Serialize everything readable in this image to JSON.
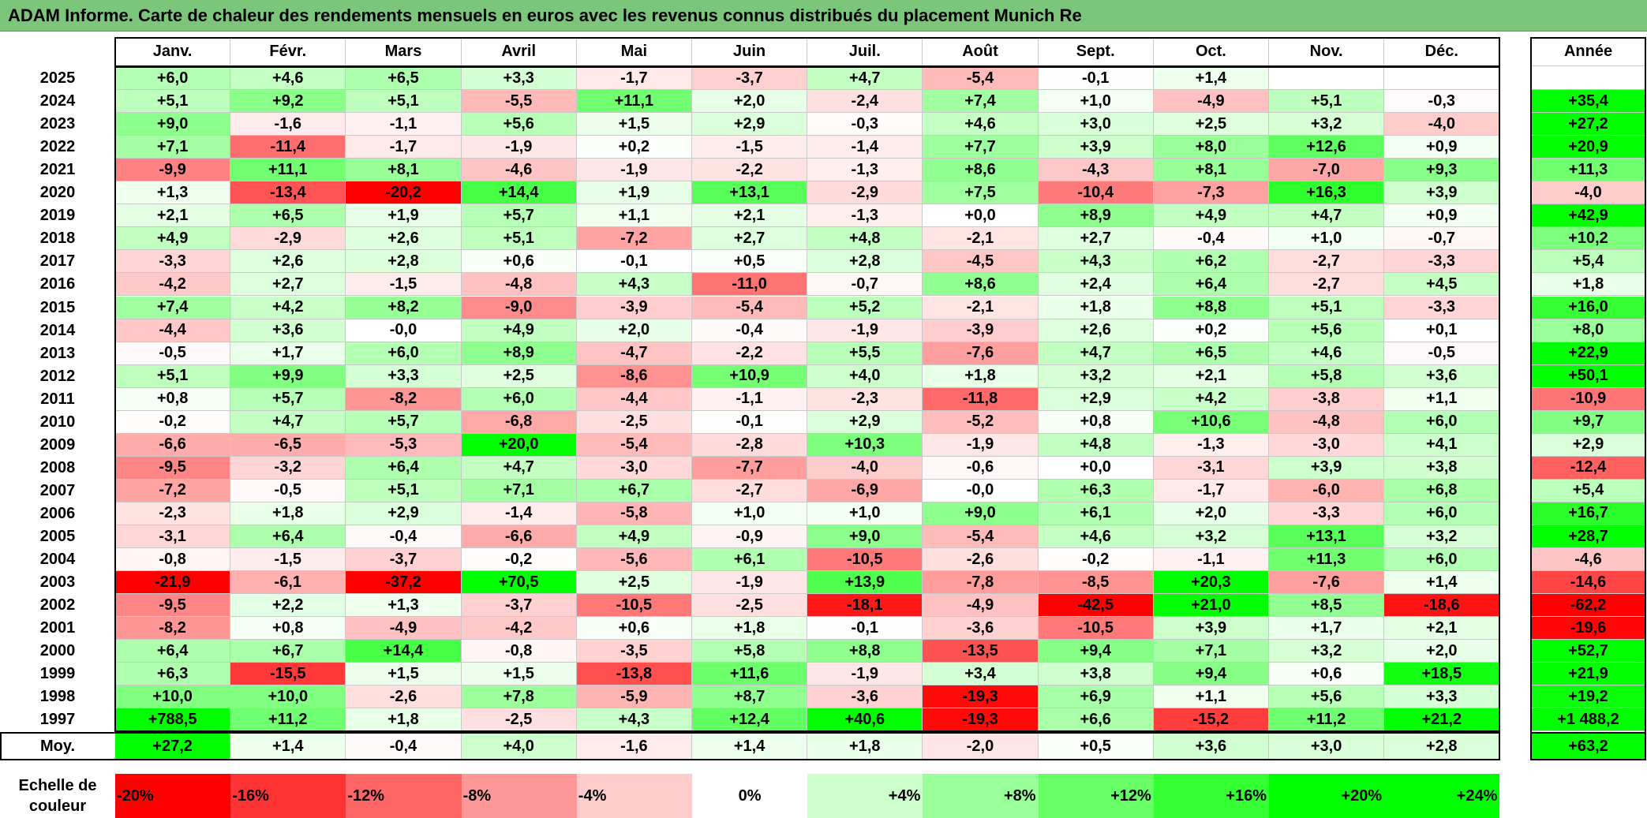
{
  "title": "ADAM Informe. Carte de chaleur des rendements mensuels en euros avec les revenus connus distribués du placement Munich Re",
  "chart_data": {
    "type": "heatmap",
    "columns": [
      "Janv.",
      "Févr.",
      "Mars",
      "Avril",
      "Mai",
      "Juin",
      "Juil.",
      "Août",
      "Sept.",
      "Oct.",
      "Nov.",
      "Déc."
    ],
    "year_column": "Année",
    "rows": [
      {
        "year": "2025",
        "values": [
          "+6,0",
          "+4,6",
          "+6,5",
          "+3,3",
          "-1,7",
          "-3,7",
          "+4,7",
          "-5,4",
          "-0,1",
          "+1,4",
          "",
          ""
        ],
        "annual": ""
      },
      {
        "year": "2024",
        "values": [
          "+5,1",
          "+9,2",
          "+5,1",
          "-5,5",
          "+11,1",
          "+2,0",
          "-2,4",
          "+7,4",
          "+1,0",
          "-4,9",
          "+5,1",
          "-0,3"
        ],
        "annual": "+35,4"
      },
      {
        "year": "2023",
        "values": [
          "+9,0",
          "-1,6",
          "-1,1",
          "+5,6",
          "+1,5",
          "+2,9",
          "-0,3",
          "+4,6",
          "+3,0",
          "+2,5",
          "+3,2",
          "-4,0"
        ],
        "annual": "+27,2"
      },
      {
        "year": "2022",
        "values": [
          "+7,1",
          "-11,4",
          "-1,7",
          "-1,9",
          "+0,2",
          "-1,5",
          "-1,4",
          "+7,7",
          "+3,9",
          "+8,0",
          "+12,6",
          "+0,9"
        ],
        "annual": "+20,9"
      },
      {
        "year": "2021",
        "values": [
          "-9,9",
          "+11,1",
          "+8,1",
          "-4,6",
          "-1,9",
          "-2,2",
          "-1,3",
          "+8,6",
          "-4,3",
          "+8,1",
          "-7,0",
          "+9,3"
        ],
        "annual": "+11,3"
      },
      {
        "year": "2020",
        "values": [
          "+1,3",
          "-13,4",
          "-20,2",
          "+14,4",
          "+1,9",
          "+13,1",
          "-2,9",
          "+7,5",
          "-10,4",
          "-7,3",
          "+16,3",
          "+3,9"
        ],
        "annual": "-4,0"
      },
      {
        "year": "2019",
        "values": [
          "+2,1",
          "+6,5",
          "+1,9",
          "+5,7",
          "+1,1",
          "+2,1",
          "-1,3",
          "+0,0",
          "+8,9",
          "+4,9",
          "+4,7",
          "+0,9"
        ],
        "annual": "+42,9"
      },
      {
        "year": "2018",
        "values": [
          "+4,9",
          "-2,9",
          "+2,6",
          "+5,1",
          "-7,2",
          "+2,7",
          "+4,8",
          "-2,1",
          "+2,7",
          "-0,4",
          "+1,0",
          "-0,7"
        ],
        "annual": "+10,2"
      },
      {
        "year": "2017",
        "values": [
          "-3,3",
          "+2,6",
          "+2,8",
          "+0,6",
          "-0,1",
          "+0,5",
          "+2,8",
          "-4,5",
          "+4,3",
          "+6,2",
          "-2,7",
          "-3,3"
        ],
        "annual": "+5,4"
      },
      {
        "year": "2016",
        "values": [
          "-4,2",
          "+2,7",
          "-1,5",
          "-4,8",
          "+4,3",
          "-11,0",
          "-0,7",
          "+8,6",
          "+2,4",
          "+6,4",
          "-2,7",
          "+4,5"
        ],
        "annual": "+1,8"
      },
      {
        "year": "2015",
        "values": [
          "+7,4",
          "+4,2",
          "+8,2",
          "-9,0",
          "-3,9",
          "-5,4",
          "+5,2",
          "-2,1",
          "+1,8",
          "+8,8",
          "+5,1",
          "-3,3"
        ],
        "annual": "+16,0"
      },
      {
        "year": "2014",
        "values": [
          "-4,4",
          "+3,6",
          "-0,0",
          "+4,9",
          "+2,0",
          "-0,4",
          "-1,9",
          "-3,9",
          "+2,6",
          "+0,2",
          "+5,6",
          "+0,1"
        ],
        "annual": "+8,0"
      },
      {
        "year": "2013",
        "values": [
          "-0,5",
          "+1,7",
          "+6,0",
          "+8,9",
          "-4,7",
          "-2,2",
          "+5,5",
          "-7,6",
          "+4,7",
          "+6,5",
          "+4,6",
          "-0,5"
        ],
        "annual": "+22,9"
      },
      {
        "year": "2012",
        "values": [
          "+5,1",
          "+9,9",
          "+3,3",
          "+2,5",
          "-8,6",
          "+10,9",
          "+4,0",
          "+1,8",
          "+3,2",
          "+2,1",
          "+5,8",
          "+3,6"
        ],
        "annual": "+50,1"
      },
      {
        "year": "2011",
        "values": [
          "+0,8",
          "+5,7",
          "-8,2",
          "+6,0",
          "-4,4",
          "-1,1",
          "-2,3",
          "-11,8",
          "+2,9",
          "+4,2",
          "-3,8",
          "+1,1"
        ],
        "annual": "-10,9"
      },
      {
        "year": "2010",
        "values": [
          "-0,2",
          "+4,7",
          "+5,7",
          "-6,8",
          "-2,5",
          "-0,1",
          "+2,9",
          "-5,2",
          "+0,8",
          "+10,6",
          "-4,8",
          "+6,0"
        ],
        "annual": "+9,7"
      },
      {
        "year": "2009",
        "values": [
          "-6,6",
          "-6,5",
          "-5,3",
          "+20,0",
          "-5,4",
          "-2,8",
          "+10,3",
          "-1,9",
          "+4,8",
          "-1,3",
          "-3,0",
          "+4,1"
        ],
        "annual": "+2,9"
      },
      {
        "year": "2008",
        "values": [
          "-9,5",
          "-3,2",
          "+6,4",
          "+4,7",
          "-3,0",
          "-7,7",
          "-4,0",
          "-0,6",
          "+0,0",
          "-3,1",
          "+3,9",
          "+3,8"
        ],
        "annual": "-12,4"
      },
      {
        "year": "2007",
        "values": [
          "-7,2",
          "-0,5",
          "+5,1",
          "+7,1",
          "+6,7",
          "-2,7",
          "-6,9",
          "-0,0",
          "+6,3",
          "-1,7",
          "-6,0",
          "+6,8"
        ],
        "annual": "+5,4"
      },
      {
        "year": "2006",
        "values": [
          "-2,3",
          "+1,8",
          "+2,9",
          "-1,4",
          "-5,8",
          "+1,0",
          "+1,0",
          "+9,0",
          "+6,1",
          "+2,0",
          "-3,3",
          "+6,0"
        ],
        "annual": "+16,7"
      },
      {
        "year": "2005",
        "values": [
          "-3,1",
          "+6,4",
          "-0,4",
          "-6,6",
          "+4,9",
          "-0,9",
          "+9,0",
          "-5,4",
          "+4,6",
          "+3,2",
          "+13,1",
          "+3,2"
        ],
        "annual": "+28,7"
      },
      {
        "year": "2004",
        "values": [
          "-0,8",
          "-1,5",
          "-3,7",
          "-0,2",
          "-5,6",
          "+6,1",
          "-10,5",
          "-2,6",
          "-0,2",
          "-1,1",
          "+11,3",
          "+6,0"
        ],
        "annual": "-4,6"
      },
      {
        "year": "2003",
        "values": [
          "-21,9",
          "-6,1",
          "-37,2",
          "+70,5",
          "+2,5",
          "-1,9",
          "+13,9",
          "-7,8",
          "-8,5",
          "+20,3",
          "-7,6",
          "+1,4"
        ],
        "annual": "-14,6"
      },
      {
        "year": "2002",
        "values": [
          "-9,5",
          "+2,2",
          "+1,3",
          "-3,7",
          "-10,5",
          "-2,5",
          "-18,1",
          "-4,9",
          "-42,5",
          "+21,0",
          "+8,5",
          "-18,6"
        ],
        "annual": "-62,2"
      },
      {
        "year": "2001",
        "values": [
          "-8,2",
          "+0,8",
          "-4,9",
          "-4,2",
          "+0,6",
          "+1,8",
          "-0,1",
          "-3,6",
          "-10,5",
          "+3,9",
          "+1,7",
          "+2,1"
        ],
        "annual": "-19,6"
      },
      {
        "year": "2000",
        "values": [
          "+6,4",
          "+6,7",
          "+14,4",
          "-0,8",
          "-3,5",
          "+5,8",
          "+8,8",
          "-13,5",
          "+9,4",
          "+7,1",
          "+3,2",
          "+2,0"
        ],
        "annual": "+52,7"
      },
      {
        "year": "1999",
        "values": [
          "+6,3",
          "-15,5",
          "+1,5",
          "+1,5",
          "-13,8",
          "+11,6",
          "-1,9",
          "+3,4",
          "+3,8",
          "+9,4",
          "+0,6",
          "+18,5"
        ],
        "annual": "+21,9"
      },
      {
        "year": "1998",
        "values": [
          "+10,0",
          "+10,0",
          "-2,6",
          "+7,8",
          "-5,9",
          "+8,7",
          "-3,6",
          "-19,3",
          "+6,9",
          "+1,1",
          "+5,6",
          "+3,3"
        ],
        "annual": "+19,2"
      },
      {
        "year": "1997",
        "values": [
          "+788,5",
          "+11,2",
          "+1,8",
          "-2,5",
          "+4,3",
          "+12,4",
          "+40,6",
          "-19,3",
          "+6,6",
          "-15,2",
          "+11,2",
          "+21,2"
        ],
        "annual": "+1 488,2"
      }
    ],
    "average": {
      "label": "Moy.",
      "values": [
        "+27,2",
        "+1,4",
        "-0,4",
        "+4,0",
        "-1,6",
        "+1,4",
        "+1,8",
        "-2,0",
        "+0,5",
        "+3,6",
        "+3,0",
        "+2,8"
      ],
      "annual": "+63,2"
    },
    "legend": {
      "title_lines": [
        "Echelle de",
        "couleur"
      ],
      "stops": [
        {
          "label": "-20%",
          "value": -20
        },
        {
          "label": "-16%",
          "value": -16
        },
        {
          "label": "-12%",
          "value": -12
        },
        {
          "label": "-8%",
          "value": -8
        },
        {
          "label": "-4%",
          "value": -4
        },
        {
          "label": "0%",
          "value": 0
        },
        {
          "label": "+4%",
          "value": 4
        },
        {
          "label": "+8%",
          "value": 8
        },
        {
          "label": "+12%",
          "value": 12
        },
        {
          "label": "+16%",
          "value": 16
        },
        {
          "label": "+20%",
          "value": 20
        },
        {
          "label": "+24%",
          "value": 24
        }
      ]
    },
    "color_scale": {
      "negative_max": "#ff0000",
      "neutral": "#ffffff",
      "positive_max": "#00ff00",
      "range": [
        -20,
        20
      ]
    }
  }
}
